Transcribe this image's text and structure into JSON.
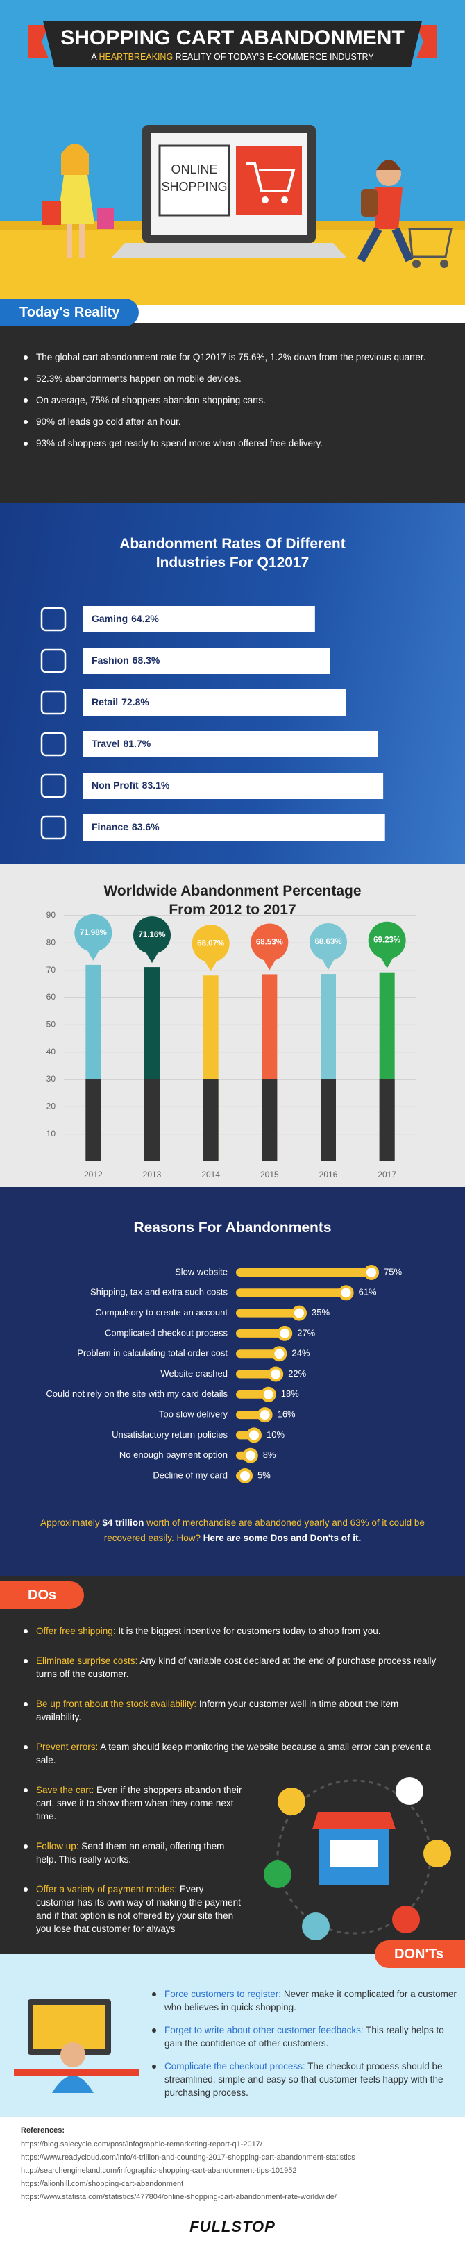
{
  "header": {
    "title": "SHOPPING CART ABANDONMENT",
    "subtitle": [
      "A ",
      "HEARTBREAKING",
      " REALITY OF TODAY'S E-COMMERCE INDUSTRY"
    ],
    "screen": [
      "ONLINE",
      "SHOPPING"
    ]
  },
  "reality": {
    "heading": "Today's Reality",
    "items": [
      "The global cart abandonment rate for Q12017 is 75.6%, 1.2% down from the previous quarter.",
      "52.3% abandonments happen on mobile devices.",
      "On average, 75% of shoppers abandon shopping carts.",
      "90% of leads go cold after an hour.",
      "93% of shoppers get ready to spend more when offered free delivery."
    ]
  },
  "industries": {
    "type": "bar",
    "title": "Abandonment Rates Of Different Industries For Q12017",
    "categories": [
      "Gaming",
      "Fashion",
      "Retail",
      "Travel",
      "Non Profit",
      "Finance"
    ],
    "values": [
      64.2,
      68.3,
      72.8,
      81.7,
      83.1,
      83.6
    ],
    "value_labels": [
      "64.2%",
      "68.3%",
      "72.8%",
      "81.7%",
      "83.1%",
      "83.6%"
    ],
    "color": "#ffffff"
  },
  "worldwide": {
    "type": "bar",
    "title": "Worldwide Abandonment Percentage From 2012 to 2017",
    "categories": [
      "2012",
      "2013",
      "2014",
      "2015",
      "2016",
      "2017"
    ],
    "values": [
      71.98,
      71.16,
      68.07,
      68.53,
      68.63,
      69.23
    ],
    "value_labels": [
      "71.98%",
      "71.16%",
      "68.07%",
      "68.53%",
      "68.63%",
      "69.23%"
    ],
    "colors": [
      "#6cc0cf",
      "#0f5449",
      "#f6c12f",
      "#f0633f",
      "#7cc7d3",
      "#2aa84a"
    ],
    "ylim": [
      0,
      90
    ],
    "yticks": [
      10,
      20,
      30,
      40,
      50,
      60,
      70,
      80,
      90
    ],
    "grid": true
  },
  "reasons": {
    "type": "bar",
    "title": "Reasons For Abandonments",
    "categories": [
      "Slow website",
      "Shipping, tax and extra such costs",
      "Compulsory to create an account",
      "Complicated checkout process",
      "Problem in calculating total order cost",
      "Website crashed",
      "Could not rely on the site with my card details",
      "Too slow delivery",
      "Unsatisfactory return policies",
      "No enough payment option",
      "Decline of my card"
    ],
    "values": [
      75,
      61,
      35,
      27,
      24,
      22,
      18,
      16,
      10,
      8,
      5
    ],
    "value_labels": [
      "75%",
      "61%",
      "35%",
      "27%",
      "24%",
      "22%",
      "18%",
      "16%",
      "10%",
      "8%",
      "5%"
    ],
    "color": "#f6c12f"
  },
  "summary": [
    "Approximately ",
    "$4 trillion",
    " worth of merchandise are abandoned yearly and 63% of it could be recovered easily. How? ",
    "Here are some Dos and Don'ts of it."
  ],
  "dos": {
    "heading": "DOs",
    "items": [
      {
        "lead": "Offer free shipping:",
        "text": " It is the biggest incentive for customers today to shop from you."
      },
      {
        "lead": "Eliminate surprise costs:",
        "text": " Any kind of variable cost declared at the end of purchase process really turns off the customer."
      },
      {
        "lead": "Be up front about the stock availability:",
        "text": " Inform your customer well in time about the item availability."
      },
      {
        "lead": "Prevent errors:",
        "text": " A team should keep monitoring the website because a small error can prevent a sale."
      },
      {
        "lead": "Save the cart:",
        "text": " Even if the shoppers abandon their cart, save it to show them when they come next time."
      },
      {
        "lead": "Follow up:",
        "text": " Send them an email, offering them help. This really works."
      },
      {
        "lead": "Offer a variety of payment modes:",
        "text": " Every customer has its own way of making the payment and if that option is not offered by your site then you lose that customer for always"
      }
    ]
  },
  "donts": {
    "heading": "DON'Ts",
    "items": [
      {
        "lead": "Force customers to register:",
        "text": " Never make it complicated for a customer who believes in quick shopping."
      },
      {
        "lead": "Forget to write about other customer feedbacks:",
        "text": " This really helps to gain the confidence of other customers."
      },
      {
        "lead": "Complicate the checkout process:",
        "text": " The checkout process should be streamlined, simple and easy so that customer feels happy with the purchasing process."
      }
    ]
  },
  "references": {
    "heading": "References:",
    "items": [
      "https://blog.salecycle.com/post/infographic-remarketing-report-q1-2017/",
      "https://www.readycloud.com/info/4-trillion-and-counting-2017-shopping-cart-abandonment-statistics",
      "http://searchengineland.com/infographic-shopping-cart-abandonment-tips-101952",
      "https://alionhill.com/shopping-cart-abandonment",
      "https://www.statista.com/statistics/477804/online-shopping-cart-abandonment-rate-worldwide/"
    ]
  },
  "footer": {
    "logo": "FULLSTOP"
  }
}
